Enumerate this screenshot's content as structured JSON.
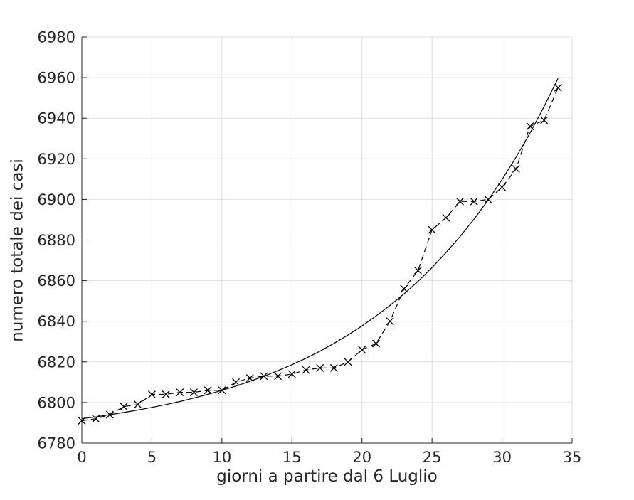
{
  "figure": {
    "background": "#ffffff",
    "axis_color": "#262626",
    "grid_color": "rgba(38,38,38,0.15)",
    "tick_label_color": "#262626",
    "series_color": "#000000"
  },
  "chart_data": {
    "type": "line",
    "title": "",
    "xlabel": "giorni a partire dal 6 Luglio",
    "ylabel": "numero totale dei casi",
    "xlim": [
      0,
      35
    ],
    "ylim": [
      6780,
      6980
    ],
    "x_ticks": [
      0,
      5,
      10,
      15,
      20,
      25,
      30,
      35
    ],
    "y_ticks": [
      6780,
      6800,
      6820,
      6840,
      6860,
      6880,
      6900,
      6920,
      6940,
      6960,
      6980
    ],
    "grid": true,
    "legend_position": "none",
    "series": [
      {
        "id": "observed-data",
        "style": "dashed",
        "marker": "x",
        "color": "#000000",
        "x": [
          0,
          1,
          2,
          3,
          4,
          5,
          6,
          7,
          8,
          9,
          10,
          11,
          12,
          13,
          14,
          15,
          16,
          17,
          18,
          19,
          20,
          21,
          22,
          23,
          24,
          25,
          26,
          27,
          28,
          29,
          30,
          31,
          32,
          33,
          34
        ],
        "y": [
          6791,
          6792,
          6794,
          6798,
          6799,
          6804,
          6804,
          6805,
          6805,
          6806,
          6806,
          6810,
          6812,
          6813,
          6813,
          6814,
          6816,
          6817,
          6817,
          6820,
          6826,
          6829,
          6840,
          6856,
          6865,
          6885,
          6891,
          6899,
          6899,
          6900,
          6906,
          6915,
          6936,
          6939,
          6955
        ]
      },
      {
        "id": "fitted-curve",
        "style": "solid",
        "marker": "none",
        "color": "#000000",
        "x": [
          0,
          1,
          2,
          3,
          4,
          5,
          6,
          7,
          8,
          9,
          10,
          11,
          12,
          13,
          14,
          15,
          16,
          17,
          18,
          19,
          20,
          21,
          22,
          23,
          24,
          25,
          26,
          27,
          28,
          29,
          30,
          31,
          32,
          33,
          34
        ],
        "y": [
          6792,
          6792.9,
          6794,
          6795.1,
          6796.3,
          6797.6,
          6799,
          6800.5,
          6802.2,
          6804,
          6806,
          6808.1,
          6810.4,
          6812.9,
          6815.7,
          6818.6,
          6821.8,
          6825.3,
          6829.1,
          6833.2,
          6837.7,
          6842.6,
          6847.8,
          6853.5,
          6859.7,
          6866.4,
          6873.8,
          6881.7,
          6890.3,
          6899.6,
          6909.8,
          6920.8,
          6932.7,
          6945.7,
          6959.7
        ]
      }
    ]
  }
}
